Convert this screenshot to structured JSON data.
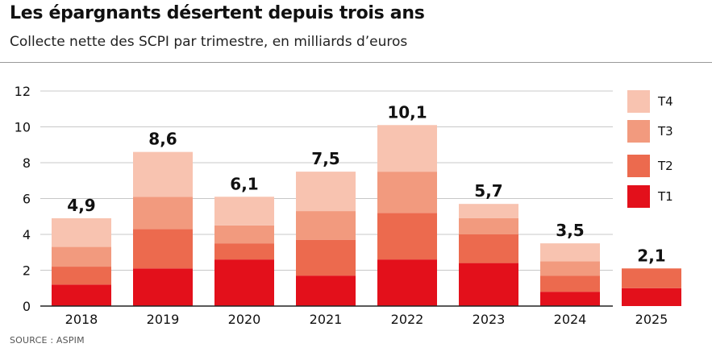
{
  "header": {
    "title": "Les épargnants désertent depuis trois ans",
    "subtitle": "Collecte nette des SCPI par trimestre, en milliards d’euros"
  },
  "source": "SOURCE : ASPIM",
  "colors": {
    "T1": "#e3101b",
    "T2": "#ec6a4e",
    "T3": "#f29a7e",
    "T4": "#f8c3b0",
    "grid": "#c8c8c8",
    "axis": "#222222"
  },
  "chart_data": {
    "type": "bar",
    "stacked": true,
    "title": "Les épargnants désertent depuis trois ans",
    "subtitle": "Collecte nette des SCPI par trimestre, en milliards d’euros",
    "xlabel": "",
    "ylabel": "",
    "ylim": [
      0,
      12
    ],
    "yticks": [
      0,
      2,
      4,
      6,
      8,
      10,
      12
    ],
    "grid": true,
    "legend_position": "right",
    "categories": [
      "2018",
      "2019",
      "2020",
      "2021",
      "2022",
      "2023",
      "2024",
      "2025"
    ],
    "series": [
      {
        "name": "T1",
        "values": [
          1.2,
          2.1,
          2.6,
          1.7,
          2.6,
          2.4,
          0.8,
          1.0
        ]
      },
      {
        "name": "T2",
        "values": [
          1.0,
          2.2,
          0.9,
          2.0,
          2.6,
          1.6,
          0.9,
          1.1
        ]
      },
      {
        "name": "T3",
        "values": [
          1.1,
          1.8,
          1.0,
          1.6,
          2.3,
          0.9,
          0.8,
          0.0
        ]
      },
      {
        "name": "T4",
        "values": [
          1.6,
          2.5,
          1.6,
          2.2,
          2.6,
          0.8,
          1.0,
          0.0
        ]
      }
    ],
    "totals": [
      "4,9",
      "8,6",
      "6,1",
      "7,5",
      "10,1",
      "5,7",
      "3,5",
      "2,1"
    ]
  },
  "legend": [
    {
      "label": "T4",
      "series": "T4"
    },
    {
      "label": "T3",
      "series": "T3"
    },
    {
      "label": "T2",
      "series": "T2"
    },
    {
      "label": "T1",
      "series": "T1"
    }
  ]
}
